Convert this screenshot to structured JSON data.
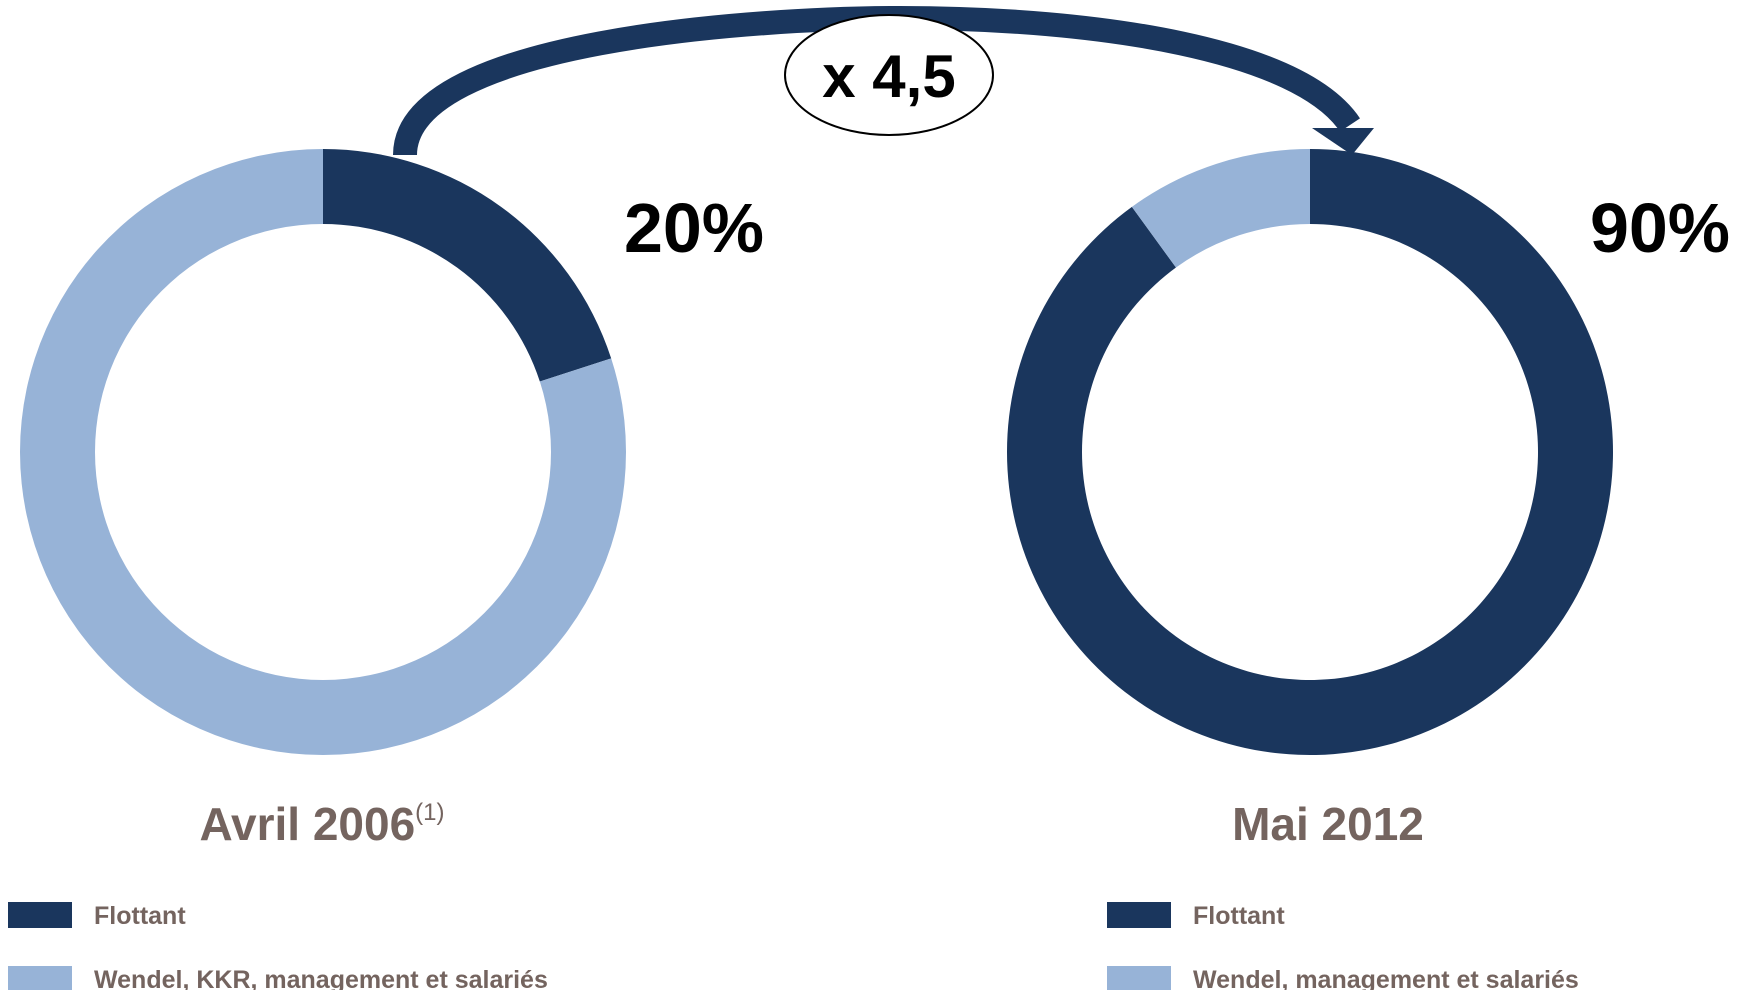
{
  "annotation": "x 4,5",
  "chart_data": [
    {
      "type": "pie",
      "donut": true,
      "title": "Avril 2006",
      "title_note": "(1)",
      "categories": [
        "Flottant",
        "Wendel, KKR, management et salariés"
      ],
      "values": [
        20,
        80
      ],
      "value_labels": [
        "20%",
        null
      ],
      "colors": [
        "#1a365d",
        "#97b3d7"
      ]
    },
    {
      "type": "pie",
      "donut": true,
      "title": "Mai 2012",
      "categories": [
        "Flottant",
        "Wendel, management et salariés"
      ],
      "values": [
        90,
        10
      ],
      "value_labels": [
        "90%",
        null
      ],
      "colors": [
        "#1a365d",
        "#97b3d7"
      ]
    }
  ]
}
